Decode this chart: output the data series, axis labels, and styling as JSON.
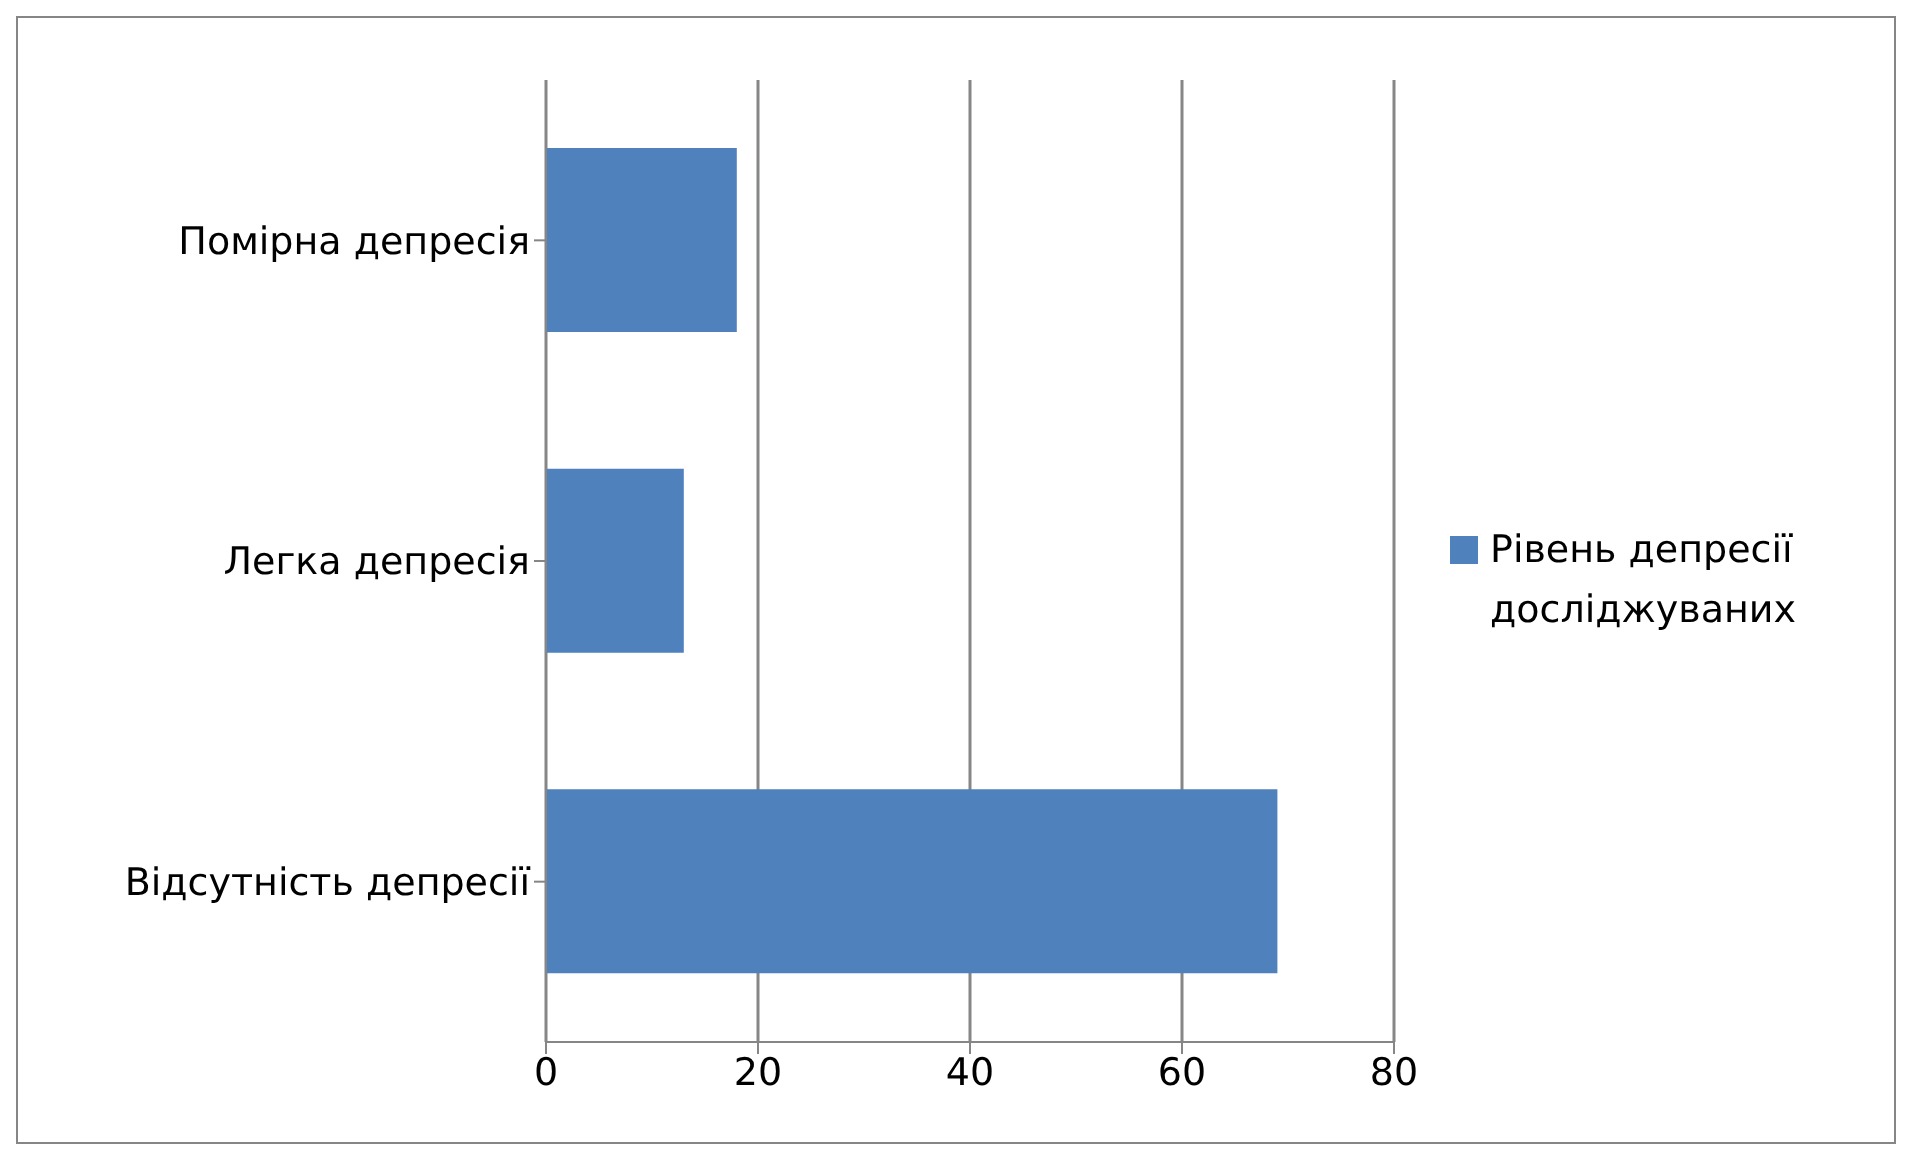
{
  "chart_data": {
    "type": "bar",
    "orientation": "horizontal",
    "categories": [
      "Помірна депресія",
      "Легка депресія",
      "Відсутність депресії"
    ],
    "series": [
      {
        "name": "Рівень депресії досліджуваних",
        "color": "#4f81bd",
        "values": [
          18,
          13,
          69
        ]
      }
    ],
    "xlim": [
      0,
      80
    ],
    "xticks": [
      0,
      20,
      40,
      60,
      80
    ],
    "grid": "x",
    "legend": "right"
  }
}
